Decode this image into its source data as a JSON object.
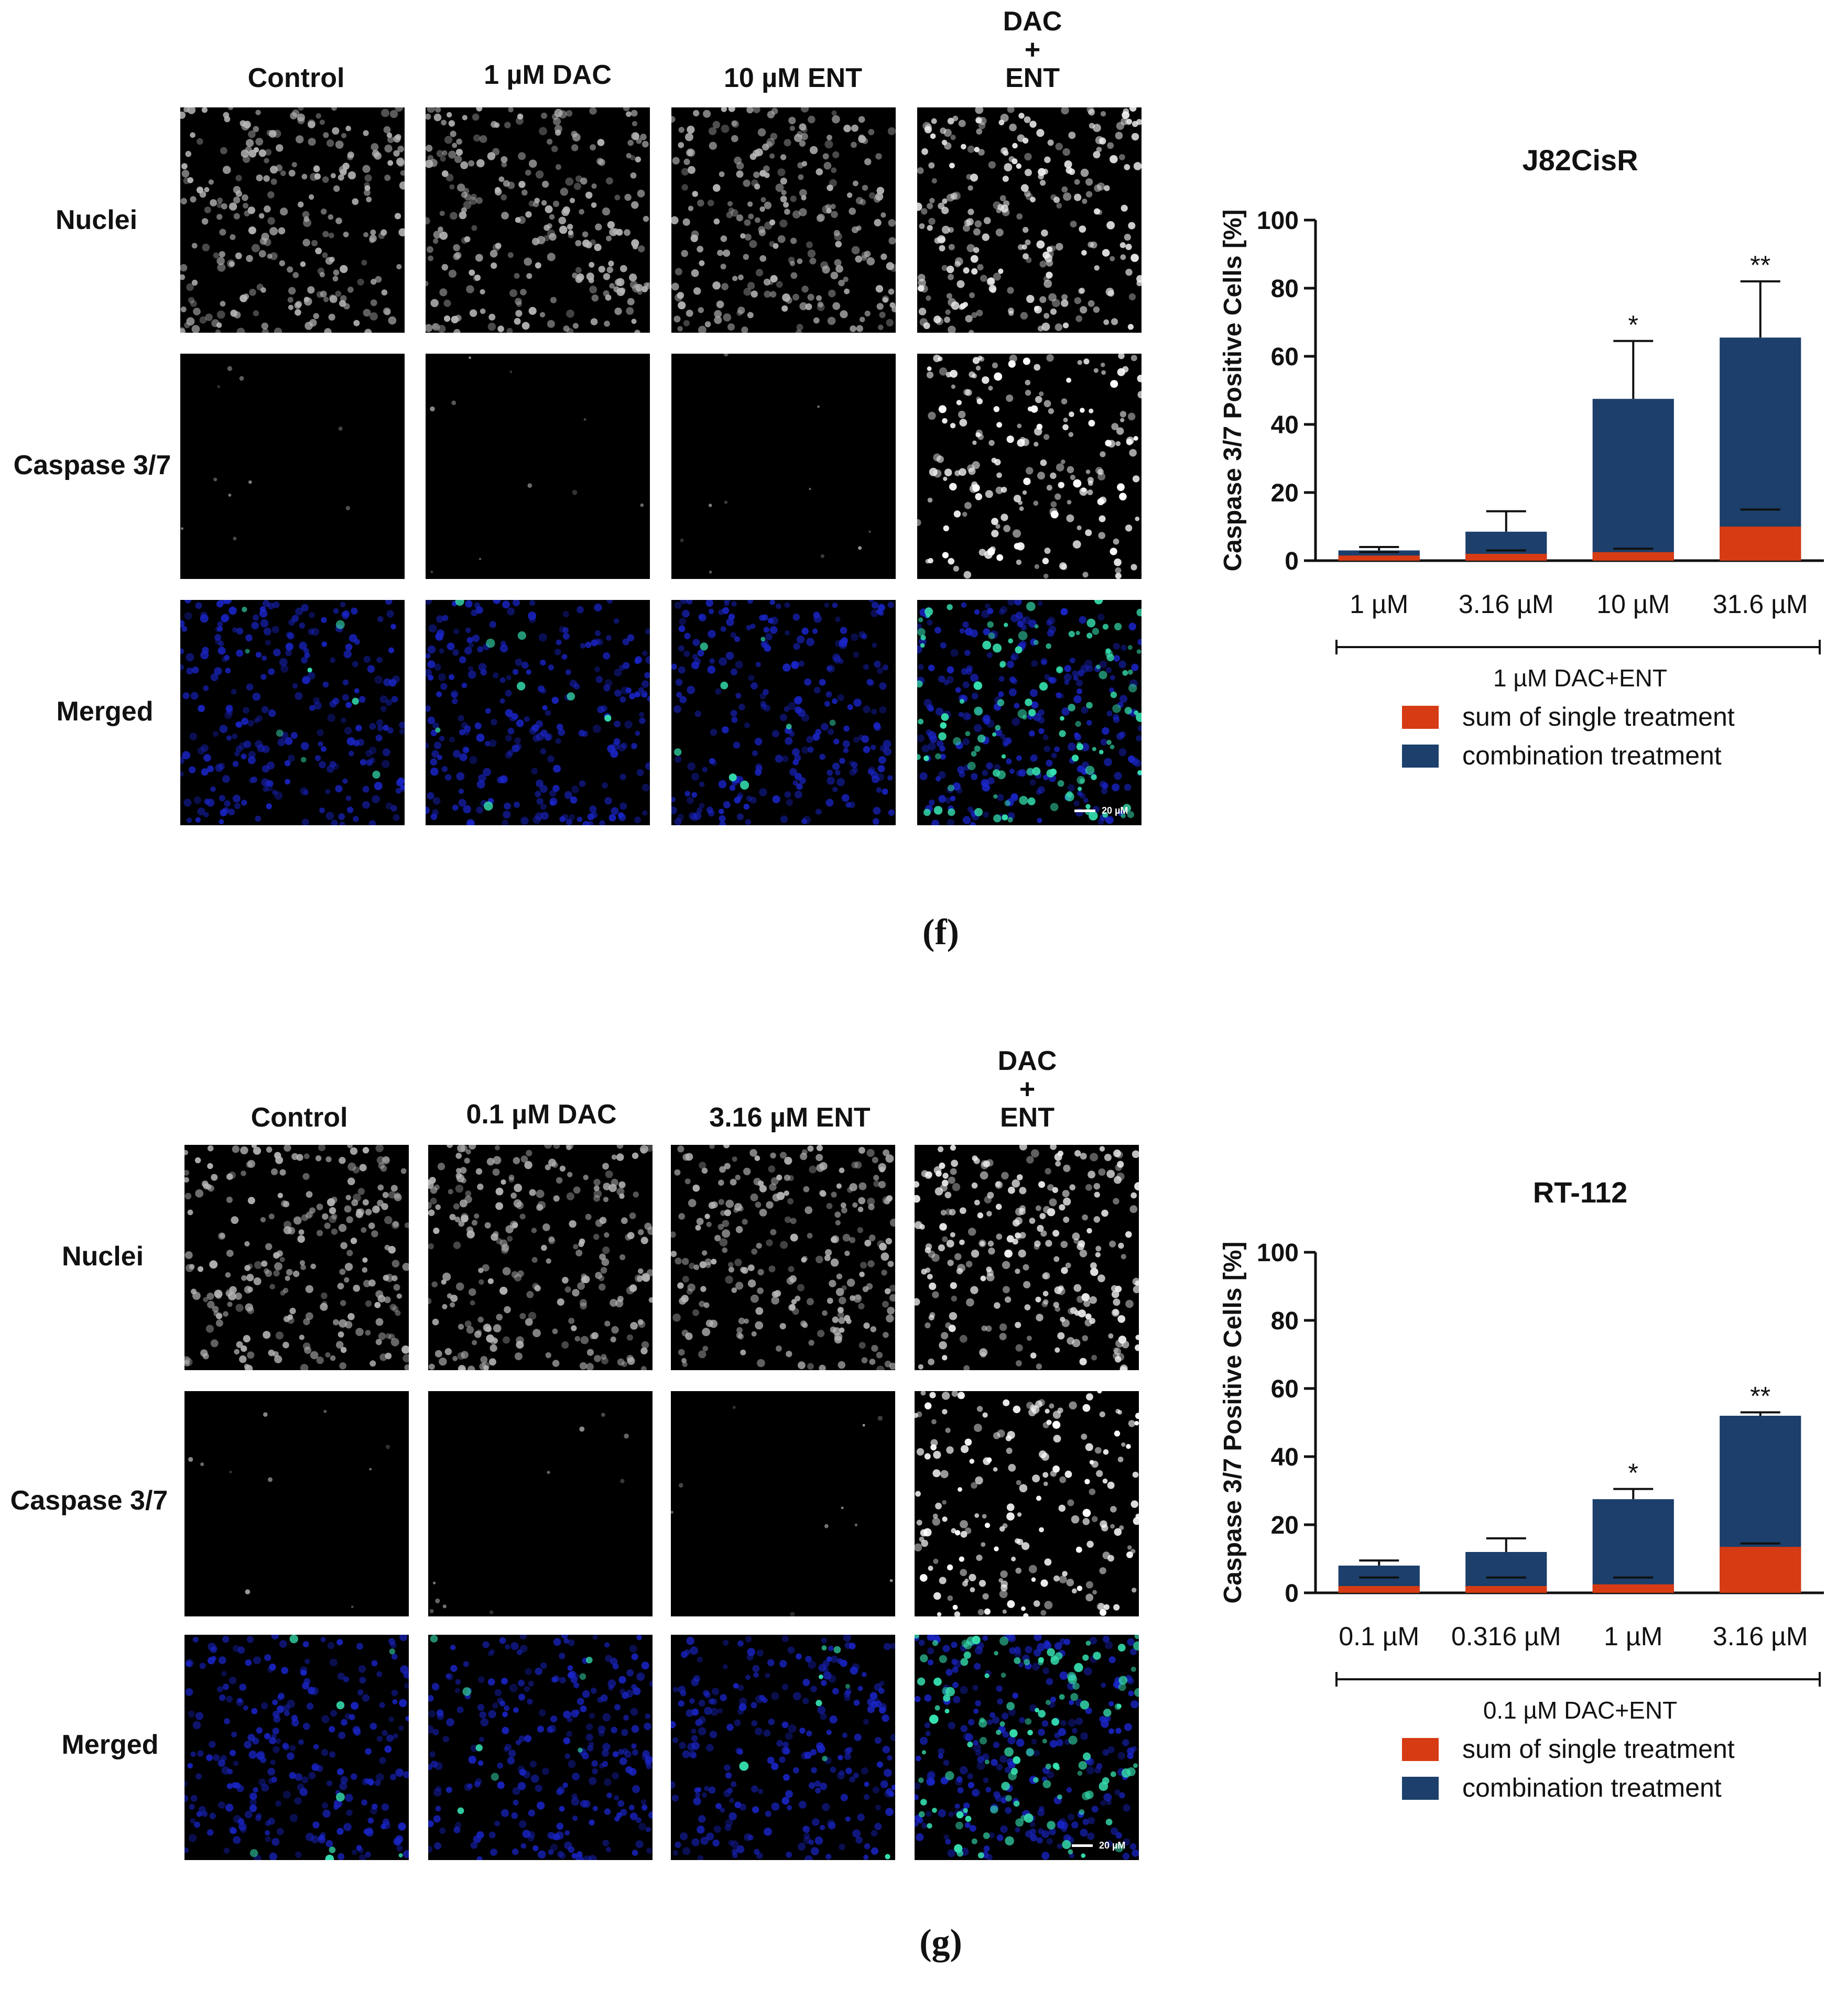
{
  "figure_f": {
    "caption": "(f)",
    "columns": [
      "Control",
      "1 µM DAC",
      "10 µM ENT",
      "DAC\n+\nENT"
    ],
    "rows": [
      "Nuclei",
      "Caspase 3/7",
      "Merged"
    ],
    "scale_bar": "20 µM"
  },
  "figure_g": {
    "caption": "(g)",
    "columns": [
      "Control",
      "0.1 µM DAC",
      "3.16 µM ENT",
      "DAC\n+\nENT"
    ],
    "rows": [
      "Nuclei",
      "Caspase 3/7",
      "Merged"
    ],
    "scale_bar": "20 µM"
  },
  "chart_data": [
    {
      "type": "bar",
      "stacked": true,
      "title": "J82CisR",
      "ylabel": "Caspase 3/7 Positive Cells [%]",
      "xlabel": "1 µM DAC+ENT",
      "categories": [
        "1 µM",
        "3.16 µM",
        "10 µM",
        "31.6 µM"
      ],
      "ylim": [
        0,
        100
      ],
      "yticks": [
        "0",
        "20",
        "40",
        "60",
        "80",
        "100"
      ],
      "series": [
        {
          "name": "sum of single treatment",
          "color": "#d63b14",
          "values": [
            1.5,
            2,
            2.5,
            10
          ],
          "error_top": [
            2.5,
            3,
            3.5,
            15
          ]
        },
        {
          "name": "combination treatment",
          "color": "#1c3f6b",
          "values": [
            3,
            8.5,
            47.5,
            65.5
          ],
          "error_top": [
            4,
            14.5,
            64.5,
            82
          ]
        }
      ],
      "significance": [
        "",
        "",
        "*",
        "**"
      ],
      "legend_position": "bottom"
    },
    {
      "type": "bar",
      "stacked": true,
      "title": "RT-112",
      "ylabel": "Caspase 3/7 Positive Cells [%]",
      "xlabel": "0.1 µM DAC+ENT",
      "categories": [
        "0.1 µM",
        "0.316 µM",
        "1 µM",
        "3.16 µM"
      ],
      "ylim": [
        0,
        100
      ],
      "yticks": [
        "0",
        "20",
        "40",
        "60",
        "80",
        "100"
      ],
      "series": [
        {
          "name": "sum of single treatment",
          "color": "#d63b14",
          "values": [
            2,
            2,
            2.5,
            13.5
          ],
          "error_top": [
            4.5,
            4.5,
            4.5,
            14.5
          ]
        },
        {
          "name": "combination treatment",
          "color": "#1c3f6b",
          "values": [
            8,
            12,
            27.5,
            52
          ],
          "error_top": [
            9.5,
            16,
            30.5,
            53
          ]
        }
      ],
      "significance": [
        "",
        "",
        "*",
        "**"
      ],
      "legend_position": "bottom"
    }
  ]
}
